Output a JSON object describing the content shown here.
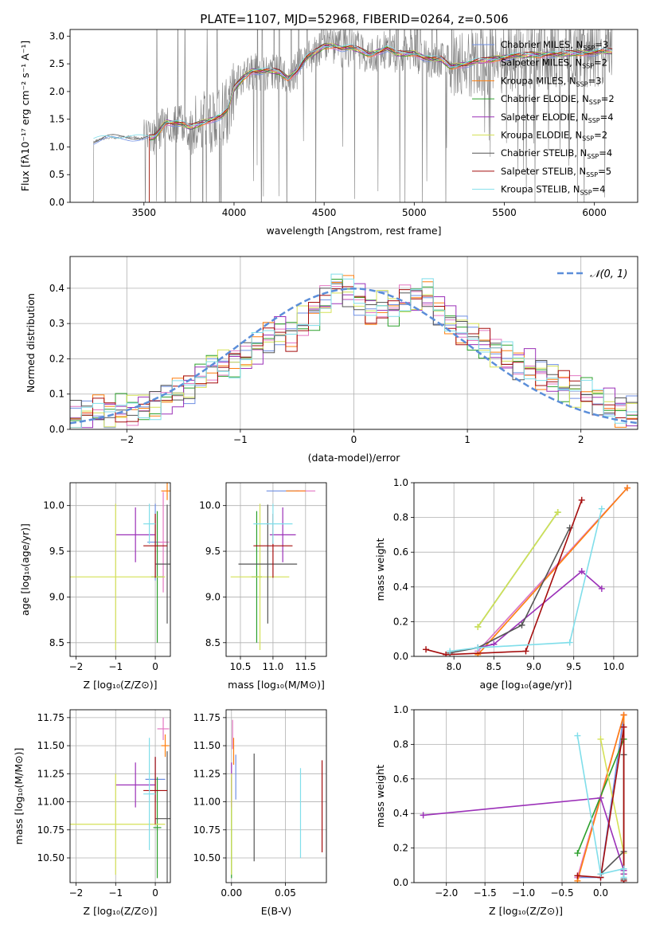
{
  "figure_title": "PLATE=1107, MJD=52968, FIBERID=0264, z=0.506",
  "series_colors": {
    "chabrier_miles": "#6f8fe3",
    "salpeter_miles": "#e377c2",
    "kroupa_miles": "#ff7f0e",
    "chabrier_elodie": "#2ca02c",
    "salpeter_elodie": "#9b30b8",
    "kroupa_elodie": "#d4e157",
    "chabrier_stelib": "#555555",
    "salpeter_stelib": "#a50d0d",
    "kroupa_stelib": "#80deea",
    "data": "#808080"
  },
  "chart_data": [
    {
      "id": "spectrum",
      "type": "line",
      "title": "PLATE=1107, MJD=52968, FIBERID=0264, z=0.506",
      "xlabel": "wavelength [Angstrom, rest frame]",
      "ylabel": "Flux [fλ10⁻¹⁷ erg cm⁻² s⁻¹ A⁻¹]",
      "xlim": [
        3090,
        6240
      ],
      "ylim": [
        0,
        3.12
      ],
      "xticks": [
        3500,
        4000,
        4500,
        5000,
        5500,
        6000
      ],
      "yticks": [
        0.0,
        0.5,
        1.0,
        1.5,
        2.0,
        2.5,
        3.0
      ],
      "legend_position": "right",
      "legend": [
        {
          "key": "chabrier_miles",
          "label": "Chabrier MILES, N_SSP=3"
        },
        {
          "key": "salpeter_miles",
          "label": "Salpeter MILES, N_SSP=2"
        },
        {
          "key": "kroupa_miles",
          "label": "Kroupa MILES, N_SSP=3"
        },
        {
          "key": "chabrier_elodie",
          "label": "Chabrier ELODIE, N_SSP=2"
        },
        {
          "key": "salpeter_elodie",
          "label": "Salpeter ELODIE, N_SSP=4"
        },
        {
          "key": "kroupa_elodie",
          "label": "Kroupa ELODIE, N_SSP=2"
        },
        {
          "key": "chabrier_stelib",
          "label": "Chabrier STELIB, N_SSP=4"
        },
        {
          "key": "salpeter_stelib",
          "label": "Salpeter STELIB, N_SSP=5"
        },
        {
          "key": "kroupa_stelib",
          "label": "Kroupa STELIB, N_SSP=4"
        }
      ],
      "model_continuum": [
        [
          3220,
          1.1
        ],
        [
          3300,
          1.17
        ],
        [
          3400,
          1.18
        ],
        [
          3500,
          1.15
        ],
        [
          3560,
          1.18
        ],
        [
          3620,
          1.45
        ],
        [
          3700,
          1.42
        ],
        [
          3760,
          1.35
        ],
        [
          3830,
          1.45
        ],
        [
          3880,
          1.5
        ],
        [
          3930,
          1.55
        ],
        [
          3965,
          1.65
        ],
        [
          4000,
          2.05
        ],
        [
          4050,
          2.25
        ],
        [
          4100,
          2.38
        ],
        [
          4150,
          2.36
        ],
        [
          4200,
          2.37
        ],
        [
          4250,
          2.35
        ],
        [
          4300,
          2.24
        ],
        [
          4350,
          2.38
        ],
        [
          4400,
          2.6
        ],
        [
          4450,
          2.7
        ],
        [
          4500,
          2.82
        ],
        [
          4550,
          2.83
        ],
        [
          4600,
          2.78
        ],
        [
          4650,
          2.79
        ],
        [
          4700,
          2.74
        ],
        [
          4750,
          2.67
        ],
        [
          4800,
          2.72
        ],
        [
          4850,
          2.78
        ],
        [
          4900,
          2.68
        ],
        [
          4950,
          2.68
        ],
        [
          5000,
          2.7
        ],
        [
          5050,
          2.62
        ],
        [
          5100,
          2.58
        ],
        [
          5150,
          2.58
        ],
        [
          5200,
          2.45
        ],
        [
          5250,
          2.48
        ],
        [
          5300,
          2.5
        ],
        [
          5350,
          2.54
        ],
        [
          5400,
          2.56
        ],
        [
          5450,
          2.6
        ],
        [
          5500,
          2.62
        ],
        [
          5550,
          2.64
        ],
        [
          5600,
          2.64
        ],
        [
          5650,
          2.67
        ],
        [
          5700,
          2.66
        ],
        [
          5750,
          2.68
        ],
        [
          5800,
          2.66
        ],
        [
          5850,
          2.68
        ],
        [
          5900,
          2.7
        ],
        [
          5950,
          2.7
        ],
        [
          6000,
          2.7
        ],
        [
          6050,
          2.72
        ],
        [
          6100,
          2.72
        ]
      ],
      "data_starts_at": 3215
    },
    {
      "id": "residuals",
      "type": "line",
      "xlabel": "(data-model)/error",
      "ylabel": "Normed distribution",
      "xlim": [
        -2.5,
        2.5
      ],
      "ylim": [
        0,
        0.49
      ],
      "xticks": [
        -2,
        -1,
        0,
        1,
        2
      ],
      "yticks": [
        0.0,
        0.1,
        0.2,
        0.3,
        0.4
      ],
      "legend_position": "top-right",
      "normal_label": "𝒩(0, 1)",
      "bin_edges_start": -2.5,
      "bin_width": 0.1,
      "histogram_envelope": [
        0.035,
        0.04,
        0.05,
        0.05,
        0.055,
        0.06,
        0.065,
        0.07,
        0.085,
        0.1,
        0.12,
        0.15,
        0.18,
        0.18,
        0.19,
        0.2,
        0.23,
        0.26,
        0.28,
        0.27,
        0.3,
        0.33,
        0.36,
        0.4,
        0.39,
        0.37,
        0.34,
        0.35,
        0.34,
        0.36,
        0.37,
        0.38,
        0.34,
        0.31,
        0.28,
        0.26,
        0.24,
        0.22,
        0.2,
        0.19,
        0.18,
        0.16,
        0.14,
        0.12,
        0.11,
        0.1,
        0.085,
        0.07,
        0.055,
        0.045
      ]
    },
    {
      "id": "age-vs-Z",
      "type": "scatter",
      "xlabel": "Z [log₁₀(Z/Z⊙)]",
      "ylabel": "age  [log₁₀(age/yr)]",
      "xlim": [
        -2.15,
        0.38
      ],
      "ylim": [
        8.35,
        10.25
      ],
      "xticks": [
        -2,
        -1,
        0
      ],
      "yticks": [
        8.5,
        9.0,
        9.5,
        10.0
      ],
      "points": [
        {
          "c": "chabrier_miles",
          "x": 0.0,
          "y": 9.6,
          "xe": 0.2,
          "ye": 0.42
        },
        {
          "c": "salpeter_miles",
          "x": 0.2,
          "y": 9.6,
          "xe": 0.15,
          "ye": 0.55
        },
        {
          "c": "kroupa_miles",
          "x": 0.3,
          "y": 10.16,
          "xe": 0.15,
          "ye": 0.1
        },
        {
          "c": "chabrier_elodie",
          "x": 0.05,
          "y": 9.22,
          "xe": 0.15,
          "ye": 0.72
        },
        {
          "c": "salpeter_elodie",
          "x": -0.5,
          "y": 9.68,
          "xe": 0.5,
          "ye": 0.3
        },
        {
          "c": "kroupa_elodie",
          "x": -1.0,
          "y": 9.22,
          "xe": 1.25,
          "ye": 0.8
        },
        {
          "c": "chabrier_stelib",
          "x": 0.3,
          "y": 9.36,
          "xe": 0.3,
          "ye": 0.65
        },
        {
          "c": "salpeter_stelib",
          "x": 0.0,
          "y": 9.56,
          "xe": 0.3,
          "ye": 0.35
        },
        {
          "c": "kroupa_stelib",
          "x": -0.15,
          "y": 9.8,
          "xe": 0.15,
          "ye": 0.22
        }
      ]
    },
    {
      "id": "age-vs-mass",
      "type": "scatter",
      "xlabel": "mass [log₁₀(M/M⊙)]",
      "ylabel": "",
      "xlim": [
        10.28,
        11.82
      ],
      "ylim": [
        8.35,
        10.25
      ],
      "xticks": [
        10.5,
        11.0,
        11.5
      ],
      "yticks": [
        8.5,
        9.0,
        9.5,
        10.0
      ],
      "points": [
        {
          "c": "chabrier_miles",
          "x": 11.15,
          "y": 10.16,
          "xe": 0.25,
          "ye": 0.0
        },
        {
          "c": "salpeter_miles",
          "x": 11.5,
          "y": 10.16,
          "xe": 0.15,
          "ye": 0.0
        },
        {
          "c": "kroupa_miles",
          "x": 11.35,
          "y": 10.16,
          "xe": 0.15,
          "ye": 0.0
        },
        {
          "c": "chabrier_elodie",
          "x": 10.75,
          "y": 9.22,
          "xe": 0.08,
          "ye": 0.72
        },
        {
          "c": "salpeter_elodie",
          "x": 11.15,
          "y": 9.68,
          "xe": 0.2,
          "ye": 0.3
        },
        {
          "c": "kroupa_elodie",
          "x": 10.8,
          "y": 9.22,
          "xe": 0.45,
          "ye": 0.8
        },
        {
          "c": "chabrier_stelib",
          "x": 10.92,
          "y": 9.36,
          "xe": 0.45,
          "ye": 0.65
        },
        {
          "c": "salpeter_stelib",
          "x": 11.0,
          "y": 9.56,
          "xe": 0.3,
          "ye": 0.35
        },
        {
          "c": "kroupa_stelib",
          "x": 11.0,
          "y": 9.8,
          "xe": 0.3,
          "ye": 0.22
        }
      ]
    },
    {
      "id": "weight-vs-age",
      "type": "line",
      "xlabel": "age  [log₁₀(age/yr)]",
      "ylabel": "mass weight",
      "xlim": [
        7.5,
        10.3
      ],
      "ylim": [
        0.0,
        1.0
      ],
      "xticks": [
        8.0,
        8.5,
        9.0,
        9.5,
        10.0
      ],
      "yticks": [
        0.0,
        0.2,
        0.4,
        0.6,
        0.8,
        1.0
      ],
      "series": [
        {
          "c": "chabrier_miles",
          "x": [
            8.3,
            10.17
          ],
          "y": [
            0.03,
            0.97
          ]
        },
        {
          "c": "salpeter_miles",
          "x": [
            8.3,
            10.17
          ],
          "y": [
            0.03,
            0.97
          ]
        },
        {
          "c": "kroupa_miles",
          "x": [
            8.3,
            10.17
          ],
          "y": [
            0.01,
            0.97
          ]
        },
        {
          "c": "chabrier_elodie",
          "x": [
            8.3,
            9.3
          ],
          "y": [
            0.17,
            0.83
          ]
        },
        {
          "c": "salpeter_elodie",
          "x": [
            8.3,
            8.5,
            9.6,
            9.85
          ],
          "y": [
            0.05,
            0.07,
            0.49,
            0.39
          ]
        },
        {
          "c": "kroupa_elodie",
          "x": [
            8.3,
            9.3
          ],
          "y": [
            0.17,
            0.83
          ]
        },
        {
          "c": "chabrier_stelib",
          "x": [
            7.95,
            8.3,
            8.85,
            9.45
          ],
          "y": [
            0.02,
            0.05,
            0.18,
            0.74
          ]
        },
        {
          "c": "salpeter_stelib",
          "x": [
            7.65,
            7.9,
            8.9,
            9.6
          ],
          "y": [
            0.04,
            0.01,
            0.03,
            0.9
          ]
        },
        {
          "c": "kroupa_stelib",
          "x": [
            7.95,
            8.3,
            9.45,
            9.85
          ],
          "y": [
            0.03,
            0.05,
            0.08,
            0.85
          ]
        }
      ]
    },
    {
      "id": "mass-vs-Z",
      "type": "scatter",
      "xlabel": "Z [log₁₀(Z/Z⊙)]",
      "ylabel": "mass [log₁₀(M/M⊙)]",
      "xlim": [
        -2.15,
        0.38
      ],
      "ylim": [
        10.28,
        11.82
      ],
      "xticks": [
        -2,
        -1,
        0
      ],
      "yticks": [
        10.5,
        10.75,
        11.0,
        11.25,
        11.5,
        11.75
      ],
      "points": [
        {
          "c": "chabrier_miles",
          "x": 0.0,
          "y": 11.2,
          "xe": 0.25,
          "ye": 0.2
        },
        {
          "c": "salpeter_miles",
          "x": 0.2,
          "y": 11.65,
          "xe": 0.15,
          "ye": 0.1
        },
        {
          "c": "kroupa_miles",
          "x": 0.25,
          "y": 11.5,
          "xe": 0.1,
          "ye": 0.1
        },
        {
          "c": "chabrier_elodie",
          "x": 0.05,
          "y": 10.77,
          "xe": 0.1,
          "ye": 0.45
        },
        {
          "c": "salpeter_elodie",
          "x": -0.5,
          "y": 11.15,
          "xe": 0.5,
          "ye": 0.2
        },
        {
          "c": "kroupa_elodie",
          "x": -1.0,
          "y": 10.8,
          "xe": 1.25,
          "ye": 0.45
        },
        {
          "c": "chabrier_stelib",
          "x": 0.3,
          "y": 10.85,
          "xe": 0.3,
          "ye": 0.6
        },
        {
          "c": "salpeter_stelib",
          "x": 0.0,
          "y": 11.1,
          "xe": 0.3,
          "ye": 0.3
        },
        {
          "c": "kroupa_stelib",
          "x": -0.15,
          "y": 11.07,
          "xe": 0.15,
          "ye": 0.5
        }
      ]
    },
    {
      "id": "mass-vs-ebv",
      "type": "scatter",
      "xlabel": "E(B-V)",
      "ylabel": "",
      "xlim": [
        -0.005,
        0.088
      ],
      "ylim": [
        10.28,
        11.82
      ],
      "xticks": [
        0.0,
        0.05
      ],
      "yticks": [
        10.5,
        10.75,
        11.0,
        11.25,
        11.5,
        11.75
      ],
      "points": [
        {
          "c": "chabrier_miles",
          "x": 0.004,
          "y": 11.22,
          "ye": 0.2
        },
        {
          "c": "salpeter_miles",
          "x": 0.001,
          "y": 11.6,
          "ye": 0.13
        },
        {
          "c": "kroupa_miles",
          "x": 0.002,
          "y": 11.45,
          "ye": 0.12
        },
        {
          "c": "chabrier_elodie",
          "x": 0.0,
          "y": 10.77,
          "ye": 0.45
        },
        {
          "c": "salpeter_elodie",
          "x": 0.0,
          "y": 11.15,
          "ye": 0.2
        },
        {
          "c": "kroupa_elodie",
          "x": 0.0,
          "y": 10.8,
          "ye": 0.45
        },
        {
          "c": "chabrier_stelib",
          "x": 0.021,
          "y": 10.95,
          "ye": 0.48
        },
        {
          "c": "salpeter_stelib",
          "x": 0.084,
          "y": 10.96,
          "ye": 0.41
        },
        {
          "c": "kroupa_stelib",
          "x": 0.064,
          "y": 10.9,
          "ye": 0.4
        }
      ]
    },
    {
      "id": "weight-vs-Z",
      "type": "line",
      "xlabel": "Z [log₁₀(Z/Z⊙)]",
      "ylabel": "mass weight",
      "xlim": [
        -2.42,
        0.48
      ],
      "ylim": [
        0.0,
        1.0
      ],
      "xticks": [
        -2.0,
        -1.5,
        -1.0,
        -0.5,
        0.0
      ],
      "yticks": [
        0.0,
        0.2,
        0.4,
        0.6,
        0.8,
        1.0
      ],
      "series": [
        {
          "c": "chabrier_miles",
          "x": [
            -0.3,
            0.0,
            0.3
          ],
          "y": [
            0.03,
            0.03,
            0.97
          ]
        },
        {
          "c": "salpeter_miles",
          "x": [
            -0.3,
            0.3,
            0.3
          ],
          "y": [
            0.03,
            0.97,
            0.05
          ]
        },
        {
          "c": "kroupa_miles",
          "x": [
            -0.3,
            0.3,
            0.3
          ],
          "y": [
            0.01,
            0.97,
            0.05
          ]
        },
        {
          "c": "chabrier_elodie",
          "x": [
            -0.3,
            0.3
          ],
          "y": [
            0.17,
            0.83
          ]
        },
        {
          "c": "salpeter_elodie",
          "x": [
            -2.3,
            0.0,
            0.3,
            0.3
          ],
          "y": [
            0.39,
            0.49,
            0.07,
            0.05
          ]
        },
        {
          "c": "kroupa_elodie",
          "x": [
            0.3,
            0.0
          ],
          "y": [
            0.17,
            0.83
          ]
        },
        {
          "c": "chabrier_stelib",
          "x": [
            0.0,
            0.3,
            0.3,
            0.3
          ],
          "y": [
            0.05,
            0.18,
            0.74,
            0.02
          ]
        },
        {
          "c": "salpeter_stelib",
          "x": [
            -0.3,
            0.0,
            0.3,
            0.3
          ],
          "y": [
            0.04,
            0.03,
            0.9,
            0.01
          ]
        },
        {
          "c": "kroupa_stelib",
          "x": [
            -0.3,
            0.0,
            0.3,
            0.3
          ],
          "y": [
            0.85,
            0.05,
            0.08,
            0.03
          ]
        }
      ]
    }
  ]
}
